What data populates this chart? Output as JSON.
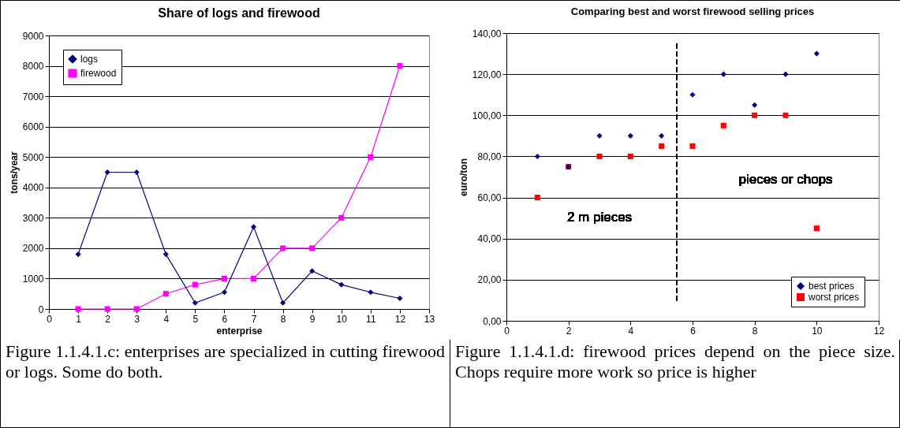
{
  "chart_data": [
    {
      "type": "line",
      "title": "Share of logs and firewood",
      "xlabel": "enterprise",
      "ylabel": "tons/year",
      "x": [
        1,
        2,
        3,
        4,
        5,
        6,
        7,
        8,
        9,
        10,
        11,
        12
      ],
      "series": [
        {
          "name": "logs",
          "color": "#000080",
          "marker": "diamond",
          "values": [
            1800,
            4500,
            4500,
            1800,
            200,
            550,
            2700,
            200,
            1250,
            800,
            550,
            350
          ]
        },
        {
          "name": "firewood",
          "color": "#ff00ff",
          "marker": "square",
          "values": [
            0,
            0,
            0,
            500,
            800,
            1000,
            1000,
            2000,
            2000,
            3000,
            5000,
            8000
          ]
        }
      ],
      "xlim": [
        0,
        13
      ],
      "xticks": [
        0,
        1,
        2,
        3,
        4,
        5,
        6,
        7,
        8,
        9,
        10,
        11,
        12,
        13
      ],
      "ylim": [
        0,
        9000
      ],
      "yticks": [
        0,
        1000,
        2000,
        3000,
        4000,
        5000,
        6000,
        7000,
        8000,
        9000
      ],
      "grid": "y",
      "legend": "top left",
      "annotations": [
        "Figure 1.1.4.1.c: enterprises are specialized in cutting firewood or logs. Some do both."
      ]
    },
    {
      "type": "scatter",
      "title": "Comparing best and worst firewood selling prices",
      "ylabel": "euro/ton",
      "x": [
        1,
        2,
        3,
        4,
        5,
        6,
        7,
        8,
        9,
        10
      ],
      "series": [
        {
          "name": "best prices",
          "color": "#000080",
          "marker": "diamond",
          "values": [
            80,
            75,
            90,
            90,
            90,
            110,
            120,
            105,
            120,
            130
          ]
        },
        {
          "name": "worst prices",
          "color": "#ff0000",
          "marker": "square",
          "values": [
            60,
            75,
            80,
            80,
            85,
            85,
            95,
            100,
            100,
            45
          ]
        }
      ],
      "xlim": [
        0,
        12
      ],
      "xticks": [
        0,
        2,
        4,
        6,
        8,
        10,
        12
      ],
      "ylim": [
        0,
        140
      ],
      "yticks": [
        {
          "value": 0,
          "label": "0,00"
        },
        {
          "value": 20,
          "label": "20,00"
        },
        {
          "value": 40,
          "label": "40,00"
        },
        {
          "value": 60,
          "label": "60,00"
        },
        {
          "value": 80,
          "label": "80,00"
        },
        {
          "value": 100,
          "label": "100,00"
        },
        {
          "value": 120,
          "label": "120,00"
        },
        {
          "value": 140,
          "label": "140,00"
        }
      ],
      "grid": "y",
      "legend": "bottom right",
      "ref_lines": [
        {
          "axis": "x",
          "value": 5.5,
          "line_style": "dashed",
          "color": "#000000"
        }
      ],
      "annotations": [
        "2 m pieces",
        "pieces or chops",
        "Figure 1.1.4.1.d: firewood prices depend on the piece size. Chops require more work so price is higher"
      ]
    }
  ]
}
